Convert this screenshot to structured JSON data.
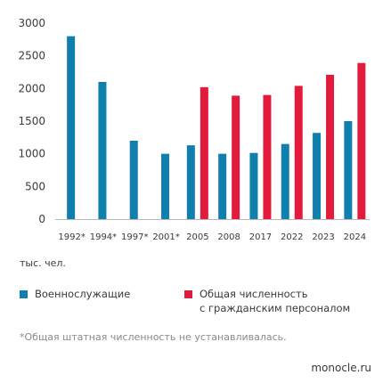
{
  "chart_data": {
    "type": "bar",
    "categories": [
      "1992*",
      "1994*",
      "1997*",
      "2001*",
      "2005",
      "2008",
      "2017",
      "2022",
      "2023",
      "2024"
    ],
    "series": [
      {
        "name": "Военнослужащие",
        "color": "#0f7fad",
        "values": [
          2800,
          2100,
          1200,
          1000,
          1130,
          1000,
          1013,
          1150,
          1320,
          1500
        ]
      },
      {
        "name": "Общая численность\nс гражданским персоналом",
        "color": "#e21b3c",
        "values": [
          null,
          null,
          null,
          null,
          2020,
          1890,
          1900,
          2040,
          2210,
          2390
        ]
      }
    ],
    "ylim": [
      0,
      3000
    ],
    "yticks": [
      0,
      500,
      1000,
      1500,
      2000,
      2500,
      3000
    ],
    "grid": false,
    "legend_position": "bottom",
    "unit_label": "тыс. чел."
  },
  "footnote": "*Общая штатная численность не устанавливалась.",
  "source": "monocle.ru"
}
